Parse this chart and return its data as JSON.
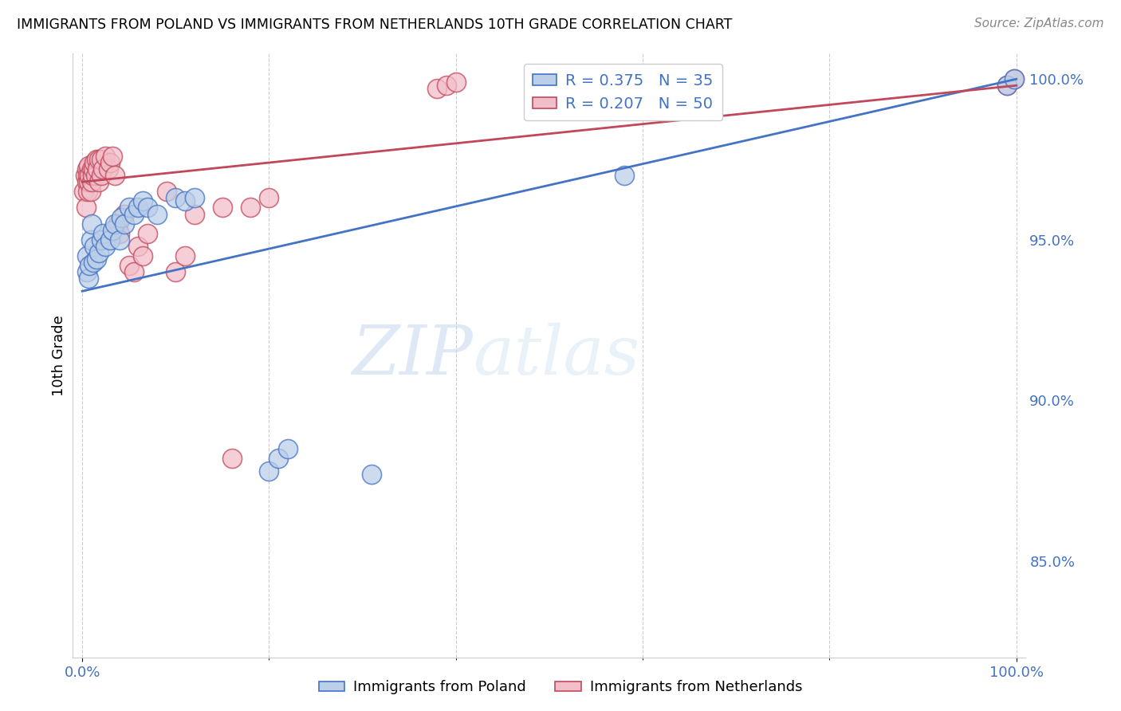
{
  "title": "IMMIGRANTS FROM POLAND VS IMMIGRANTS FROM NETHERLANDS 10TH GRADE CORRELATION CHART",
  "source": "Source: ZipAtlas.com",
  "ylabel": "10th Grade",
  "y_min": 0.82,
  "y_max": 1.008,
  "x_min": -0.01,
  "x_max": 1.01,
  "legend_r_blue": "R = 0.375",
  "legend_n_blue": "N = 35",
  "legend_r_pink": "R = 0.207",
  "legend_n_pink": "N = 50",
  "legend_label_blue": "Immigrants from Poland",
  "legend_label_pink": "Immigrants from Netherlands",
  "color_blue": "#BBCFE8",
  "color_pink": "#F2BECA",
  "line_color_blue": "#4472C4",
  "line_color_pink": "#C0485A",
  "scatter_blue_x": [
    0.005,
    0.005,
    0.007,
    0.008,
    0.009,
    0.01,
    0.012,
    0.013,
    0.015,
    0.018,
    0.02,
    0.022,
    0.025,
    0.03,
    0.032,
    0.035,
    0.04,
    0.042,
    0.045,
    0.05,
    0.055,
    0.06,
    0.065,
    0.07,
    0.08,
    0.1,
    0.11,
    0.12,
    0.2,
    0.21,
    0.22,
    0.31,
    0.58,
    0.99,
    0.998
  ],
  "scatter_blue_y": [
    0.94,
    0.945,
    0.938,
    0.942,
    0.95,
    0.955,
    0.943,
    0.948,
    0.944,
    0.946,
    0.95,
    0.952,
    0.948,
    0.95,
    0.953,
    0.955,
    0.95,
    0.957,
    0.955,
    0.96,
    0.958,
    0.96,
    0.962,
    0.96,
    0.958,
    0.963,
    0.962,
    0.963,
    0.878,
    0.882,
    0.885,
    0.877,
    0.97,
    0.998,
    1.0
  ],
  "scatter_pink_x": [
    0.002,
    0.003,
    0.004,
    0.005,
    0.005,
    0.006,
    0.006,
    0.007,
    0.007,
    0.008,
    0.009,
    0.01,
    0.01,
    0.011,
    0.012,
    0.013,
    0.014,
    0.015,
    0.016,
    0.018,
    0.018,
    0.02,
    0.02,
    0.022,
    0.025,
    0.028,
    0.03,
    0.032,
    0.035,
    0.038,
    0.04,
    0.045,
    0.05,
    0.055,
    0.06,
    0.065,
    0.07,
    0.09,
    0.1,
    0.11,
    0.12,
    0.15,
    0.16,
    0.18,
    0.2,
    0.38,
    0.39,
    0.4,
    0.99,
    0.998
  ],
  "scatter_pink_y": [
    0.965,
    0.97,
    0.96,
    0.968,
    0.972,
    0.965,
    0.97,
    0.968,
    0.973,
    0.97,
    0.965,
    0.968,
    0.972,
    0.97,
    0.972,
    0.974,
    0.97,
    0.975,
    0.972,
    0.968,
    0.975,
    0.97,
    0.975,
    0.972,
    0.976,
    0.972,
    0.974,
    0.976,
    0.97,
    0.955,
    0.952,
    0.958,
    0.942,
    0.94,
    0.948,
    0.945,
    0.952,
    0.965,
    0.94,
    0.945,
    0.958,
    0.96,
    0.882,
    0.96,
    0.963,
    0.997,
    0.998,
    0.999,
    0.998,
    1.0
  ],
  "blue_line_y_start": 0.934,
  "blue_line_y_end": 1.0,
  "pink_line_y_start": 0.968,
  "pink_line_y_end": 0.998,
  "watermark_zip": "ZIP",
  "watermark_atlas": "atlas",
  "background_color": "#FFFFFF",
  "grid_color": "#CCCCCC",
  "ytick_vals": [
    0.85,
    0.9,
    0.95,
    1.0
  ],
  "ytick_labels": [
    "85.0%",
    "90.0%",
    "95.0%",
    "100.0%"
  ]
}
